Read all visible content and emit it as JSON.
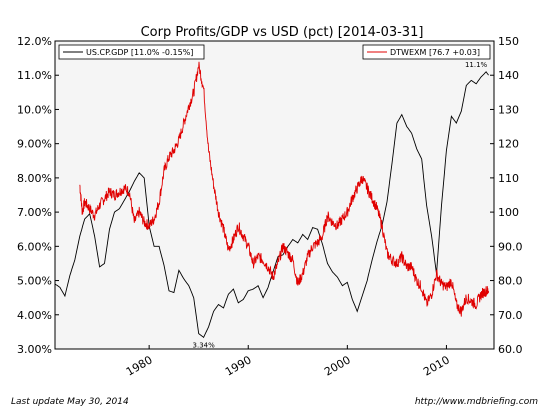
{
  "chart_data": {
    "type": "line",
    "title": "Corp Profits/GDP vs USD (pct) [2014-03-31]",
    "x_ticks": [
      "1980",
      "1990",
      "2000",
      "2010"
    ],
    "xlim": [
      1970.5,
      2014.8
    ],
    "y_left": {
      "ticks": [
        "3.00%",
        "4.00%",
        "5.00%",
        "6.00%",
        "7.00%",
        "8.00%",
        "9.00%",
        "10.0%",
        "11.0%",
        "12.0%"
      ],
      "range": [
        3.0,
        12.0
      ]
    },
    "y_right": {
      "ticks": [
        "60.0",
        "70.0",
        "80.0",
        "90.0",
        "100",
        "110",
        "120",
        "130",
        "140",
        "150"
      ],
      "range": [
        60,
        150
      ]
    },
    "legend_left": "US.CP.GDP [11.0% -0.15%]",
    "legend_right": "DTWEXM [76.7 +0.03]",
    "series": [
      {
        "name": "US.CP.GDP [11.0% -0.15%]",
        "axis": "left",
        "color": "#000000",
        "x": [
          1970.5,
          1971.0,
          1971.5,
          1972.0,
          1972.5,
          1973.0,
          1973.5,
          1974.0,
          1974.5,
          1975.0,
          1975.5,
          1976.0,
          1976.5,
          1977.0,
          1977.5,
          1978.0,
          1978.5,
          1979.0,
          1979.5,
          1980.0,
          1980.5,
          1981.0,
          1981.5,
          1982.0,
          1982.5,
          1983.0,
          1983.5,
          1984.0,
          1984.5,
          1985.0,
          1985.5,
          1986.0,
          1986.5,
          1987.0,
          1987.5,
          1988.0,
          1988.5,
          1989.0,
          1989.5,
          1990.0,
          1990.5,
          1991.0,
          1991.5,
          1992.0,
          1992.5,
          1993.0,
          1993.5,
          1994.0,
          1994.5,
          1995.0,
          1995.5,
          1996.0,
          1996.5,
          1997.0,
          1997.5,
          1998.0,
          1998.5,
          1999.0,
          1999.5,
          2000.0,
          2000.5,
          2001.0,
          2001.5,
          2002.0,
          2002.5,
          2003.0,
          2003.5,
          2004.0,
          2004.5,
          2005.0,
          2005.5,
          2006.0,
          2006.5,
          2007.0,
          2007.5,
          2008.0,
          2008.5,
          2009.0,
          2009.5,
          2010.0,
          2010.5,
          2011.0,
          2011.5,
          2012.0,
          2012.5,
          2013.0,
          2013.5,
          2014.0,
          2014.25
        ],
        "values": [
          4.9,
          4.8,
          4.55,
          5.15,
          5.6,
          6.3,
          6.8,
          6.95,
          6.3,
          5.4,
          5.5,
          6.5,
          7.0,
          7.1,
          7.35,
          7.6,
          7.9,
          8.15,
          8.0,
          6.6,
          6.0,
          6.0,
          5.45,
          4.7,
          4.65,
          5.3,
          5.05,
          4.85,
          4.5,
          3.45,
          3.34,
          3.65,
          4.1,
          4.3,
          4.2,
          4.6,
          4.75,
          4.35,
          4.45,
          4.7,
          4.75,
          4.85,
          4.5,
          4.8,
          5.25,
          5.7,
          5.75,
          6.0,
          6.2,
          6.1,
          6.35,
          6.2,
          6.55,
          6.5,
          6.05,
          5.5,
          5.25,
          5.1,
          4.85,
          4.95,
          4.45,
          4.1,
          4.55,
          5.0,
          5.6,
          6.15,
          6.6,
          7.3,
          8.4,
          9.6,
          9.85,
          9.5,
          9.3,
          8.85,
          8.55,
          7.2,
          6.3,
          5.2,
          7.2,
          8.8,
          9.8,
          9.6,
          9.95,
          10.7,
          10.85,
          10.75,
          10.95,
          11.1,
          11.0
        ]
      },
      {
        "name": "DTWEXM [76.7 +0.03]",
        "axis": "right",
        "color": "#e00000",
        "x": [
          1973.0,
          1973.25,
          1973.5,
          1974.0,
          1974.5,
          1975.0,
          1975.5,
          1976.0,
          1976.5,
          1977.0,
          1977.5,
          1978.0,
          1978.5,
          1979.0,
          1979.5,
          1980.0,
          1980.5,
          1981.0,
          1981.5,
          1982.0,
          1982.5,
          1983.0,
          1983.5,
          1984.0,
          1984.5,
          1985.0,
          1985.5,
          1986.0,
          1986.5,
          1987.0,
          1987.5,
          1988.0,
          1988.5,
          1989.0,
          1989.5,
          1990.0,
          1990.5,
          1991.0,
          1991.5,
          1992.0,
          1992.5,
          1993.0,
          1993.5,
          1994.0,
          1994.5,
          1995.0,
          1995.5,
          1996.0,
          1996.5,
          1997.0,
          1997.5,
          1998.0,
          1998.5,
          1999.0,
          1999.5,
          2000.0,
          2000.5,
          2001.0,
          2001.5,
          2002.0,
          2002.5,
          2003.0,
          2003.5,
          2004.0,
          2004.5,
          2005.0,
          2005.5,
          2006.0,
          2006.5,
          2007.0,
          2007.5,
          2008.0,
          2008.5,
          2009.0,
          2009.5,
          2010.0,
          2010.5,
          2011.0,
          2011.5,
          2012.0,
          2012.5,
          2013.0,
          2013.5,
          2014.0,
          2014.25
        ],
        "values": [
          108,
          100,
          103,
          101,
          99,
          102,
          104,
          106,
          105,
          106,
          107,
          106,
          97,
          100,
          97,
          96,
          98,
          103,
          112,
          116,
          118,
          121,
          126,
          131,
          135,
          143,
          136,
          118,
          108,
          100,
          95,
          89,
          92,
          96,
          93,
          90,
          85,
          87,
          86,
          84,
          81,
          85,
          90,
          88,
          86,
          79,
          82,
          87,
          90,
          91,
          93,
          99,
          97,
          96,
          98,
          100,
          104,
          107,
          110,
          107,
          104,
          101,
          96,
          88,
          86,
          85,
          87,
          84,
          84,
          80,
          78,
          73,
          76,
          82,
          79,
          78,
          80,
          73,
          71,
          75,
          74,
          73,
          76,
          77,
          77
        ]
      }
    ],
    "annotations": [
      {
        "text": "3.34%",
        "x": 1985.5,
        "y": 3.34,
        "axis": "left"
      },
      {
        "text": "11.1%",
        "x": 2014.0,
        "y": 11.1,
        "axis": "left"
      }
    ],
    "legend_placement": [
      "top-left",
      "top-right"
    ],
    "grid": false
  },
  "footer": {
    "last_update": "Last update May 30, 2014",
    "url": "http://www.mdbriefing.com"
  },
  "colors": {
    "plot_background": "#f5f5f5",
    "frame": "#000000",
    "left_series": "#000000",
    "right_series": "#e00000"
  }
}
